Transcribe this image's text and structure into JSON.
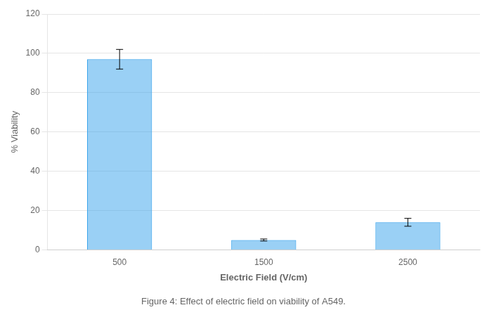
{
  "chart_data": {
    "type": "bar",
    "title": "Figure 4: Effect of electric field on viability of A549.",
    "xlabel": "Electric Field (V/cm)",
    "ylabel": "% Viability",
    "categories": [
      "500",
      "1500",
      "2500"
    ],
    "values": [
      97,
      5,
      14
    ],
    "errors": [
      5,
      0.5,
      2
    ],
    "ylim": [
      0,
      120
    ],
    "yticks": [
      0,
      20,
      40,
      60,
      80,
      100,
      120
    ],
    "grid": true
  }
}
